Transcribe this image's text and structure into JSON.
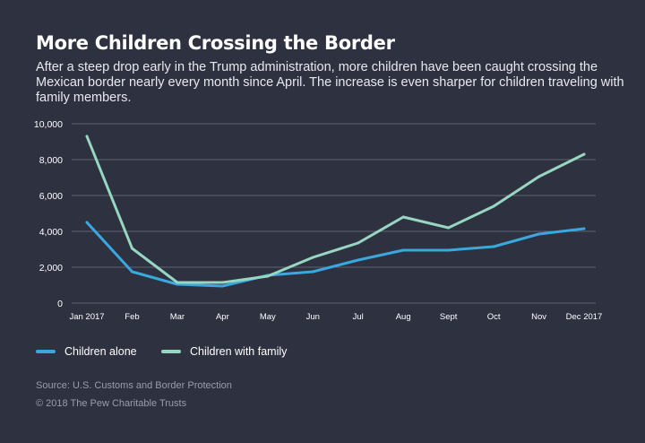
{
  "title": "More Children Crossing the Border",
  "subtitle": "After a steep drop early in the Trump administration, more children have been caught crossing the Mexican border nearly every month since April. The increase is even sharper for children traveling with family members.",
  "source": "Source: U.S. Customs and Border Protection",
  "copyright": "© 2018 The Pew Charitable Trusts",
  "colors": {
    "background": "#2e3140",
    "children_alone": "#3aa8df",
    "children_with_family": "#97d6c0",
    "grid": "#5f6273"
  },
  "chart_data": {
    "type": "line",
    "categories": [
      "Jan 2017",
      "Feb",
      "Mar",
      "Apr",
      "May",
      "Jun",
      "Jul",
      "Aug",
      "Sept",
      "Oct",
      "Nov",
      "Dec 2017"
    ],
    "series": [
      {
        "name": "Children alone",
        "color": "#3aa8df",
        "values": [
          4500,
          1750,
          1050,
          950,
          1550,
          1750,
          2400,
          2950,
          2950,
          3150,
          3850,
          4150
        ]
      },
      {
        "name": "Children with family",
        "color": "#97d6c0",
        "values": [
          9300,
          3050,
          1150,
          1150,
          1500,
          2550,
          3350,
          4800,
          4200,
          5400,
          7050,
          8300
        ]
      }
    ],
    "yticks": [
      0,
      2000,
      4000,
      6000,
      8000,
      10000
    ],
    "ytick_labels": [
      "0",
      "2,000",
      "4,000",
      "6,000",
      "8,000",
      "10,000"
    ],
    "ylim": [
      0,
      10000
    ],
    "grid": true,
    "legend_position": "bottom-left"
  }
}
